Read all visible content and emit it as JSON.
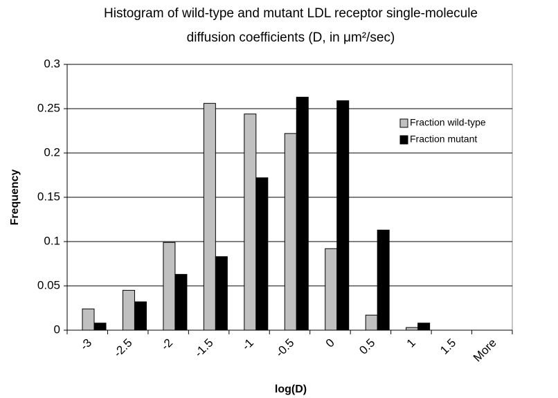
{
  "chart_data": {
    "type": "bar",
    "title": [
      "Histogram of wild-type and mutant LDL receptor single-molecule",
      "diffusion coefficients (D, in μm²/sec)"
    ],
    "x_label": "log(D)",
    "y_label": "Frequency",
    "categories": [
      "-3",
      "-2.5",
      "-2",
      "-1.5",
      "-1",
      "-0.5",
      "0",
      "0.5",
      "1",
      "1.5",
      "More"
    ],
    "series": [
      {
        "name": "Fraction wild-type",
        "color": "#c0c0c0",
        "values": [
          0.024,
          0.045,
          0.099,
          0.256,
          0.244,
          0.222,
          0.092,
          0.017,
          0.003,
          0,
          0
        ]
      },
      {
        "name": "Fraction mutant",
        "color": "#000000",
        "values": [
          0.008,
          0.032,
          0.063,
          0.083,
          0.172,
          0.263,
          0.259,
          0.113,
          0.008,
          0,
          0
        ]
      }
    ],
    "ylim": [
      0,
      0.3
    ],
    "yticks": [
      0,
      0.05,
      0.1,
      0.15,
      0.2,
      0.25,
      0.3
    ],
    "grid": true,
    "legend": "upper right"
  }
}
